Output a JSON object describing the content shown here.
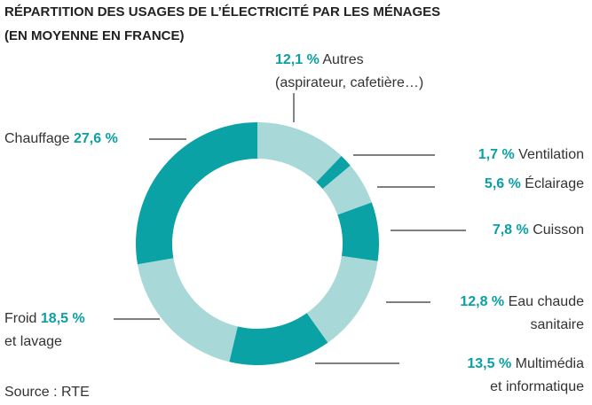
{
  "chart_data": {
    "type": "donut",
    "title": "RÉPARTITION DES USAGES DE L’ÉLECTRICITÉ PAR LES MÉNAGES",
    "subtitle": "(EN MOYENNE EN FRANCE)",
    "source": "Source : RTE",
    "categories": [
      [
        "Autres",
        "(aspirateur, cafetière…)"
      ],
      [
        "Ventilation"
      ],
      [
        "Éclairage"
      ],
      [
        "Cuisson"
      ],
      [
        "Eau chaude",
        "sanitaire"
      ],
      [
        "Multimédia",
        "et informatique"
      ],
      [
        "Froid",
        "et lavage"
      ],
      [
        "Chauffage"
      ]
    ],
    "values": [
      12.1,
      1.7,
      5.6,
      7.8,
      12.8,
      13.5,
      18.5,
      27.6
    ],
    "value_labels": [
      "12,1 %",
      "1,7 %",
      "5,6 %",
      "7,8 %",
      "12,8 %",
      "13,5 %",
      "18,5 %",
      "27,6 %"
    ],
    "colors": [
      "#a8d8d8",
      "#0aa2a5",
      "#a8d8d8",
      "#0aa2a5",
      "#a8d8d8",
      "#0aa2a5",
      "#a8d8d8",
      "#0aa2a5"
    ]
  }
}
